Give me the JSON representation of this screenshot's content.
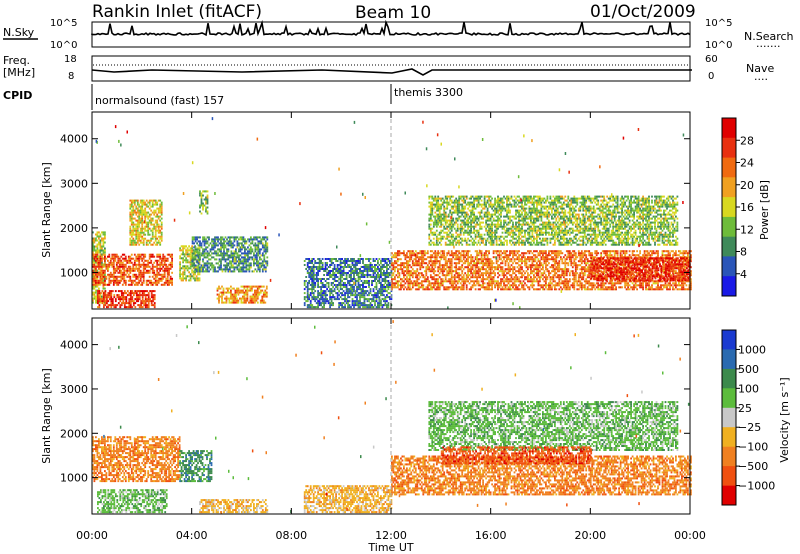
{
  "header": {
    "title": "Rankin Inlet (fitACF)",
    "beam": "Beam 10",
    "date": "01/Oct/2009"
  },
  "top_panel": {
    "left_label": "N.Sky",
    "left_ticks": [
      "10^5",
      "10^0"
    ],
    "right_ticks": [
      "10^5",
      "10^0"
    ],
    "right_label": "N.Search",
    "right_dots": "......."
  },
  "freq_panel": {
    "left_label_1": "Freq.",
    "left_label_2": "[MHz]",
    "left_ticks": [
      "18",
      "8"
    ],
    "right_ticks": [
      "60",
      "0"
    ],
    "right_label": "Nave",
    "right_dots": "...."
  },
  "cpid": {
    "label": "CPID",
    "mode_1": "normalsound (fast) 157",
    "mode_2": "themis 3300"
  },
  "x_axis": {
    "label": "Time UT",
    "ticks": [
      "00:00",
      "04:00",
      "08:00",
      "12:00",
      "16:00",
      "20:00",
      "00:00"
    ]
  },
  "power_panel": {
    "ylabel": "Slant Range [km]",
    "yticks": [
      "1000",
      "2000",
      "3000",
      "4000"
    ],
    "colorbar_label": "Power [dB]",
    "colorbar_ticks": [
      "4",
      "8",
      "12",
      "16",
      "20",
      "24",
      "28"
    ],
    "colors": [
      "#1a1ae6",
      "#2a55b8",
      "#3f8a5a",
      "#6ebc3a",
      "#d8d820",
      "#f0a020",
      "#f06a10",
      "#e83010",
      "#e00000"
    ]
  },
  "velocity_panel": {
    "ylabel": "Slant Range [km]",
    "yticks": [
      "1000",
      "2000",
      "3000",
      "4000"
    ],
    "colorbar_label": "Velocity [m s⁻¹]",
    "colorbar_ticks": [
      "1000",
      "500",
      "100",
      "25",
      "−25",
      "−100",
      "−500",
      "−1000"
    ],
    "colors": [
      "#1a3ad0",
      "#2a6ab0",
      "#3c8a4c",
      "#5cbc3c",
      "#c8c8c8",
      "#f0b020",
      "#f08020",
      "#f05010",
      "#e00000"
    ]
  },
  "chart_data": [
    {
      "type": "heatmap",
      "title": "Power [dB]",
      "xlabel": "Time UT",
      "ylabel": "Slant Range [km]",
      "xlim": [
        0,
        24
      ],
      "ylim": [
        180,
        4600
      ],
      "clim": [
        0,
        30
      ],
      "regions": [
        {
          "t0": 0.0,
          "t1": 0.5,
          "r0": 300,
          "r1": 1900,
          "v": 14
        },
        {
          "t0": 0.0,
          "t1": 3.2,
          "r0": 700,
          "r1": 1400,
          "v": 24
        },
        {
          "t0": 0.2,
          "t1": 2.5,
          "r0": 200,
          "r1": 600,
          "v": 26
        },
        {
          "t0": 1.5,
          "t1": 2.8,
          "r0": 1600,
          "r1": 2600,
          "v": 16
        },
        {
          "t0": 3.5,
          "t1": 4.3,
          "r0": 800,
          "r1": 1600,
          "v": 14
        },
        {
          "t0": 4.3,
          "t1": 4.6,
          "r0": 2300,
          "r1": 2800,
          "v": 12
        },
        {
          "t0": 4.0,
          "t1": 7.0,
          "r0": 1000,
          "r1": 1800,
          "v": 8
        },
        {
          "t0": 5.0,
          "t1": 7.0,
          "r0": 300,
          "r1": 700,
          "v": 20
        },
        {
          "t0": 8.5,
          "t1": 12.0,
          "r0": 200,
          "r1": 1300,
          "v": 6
        },
        {
          "t0": 12.0,
          "t1": 24.0,
          "r0": 600,
          "r1": 1500,
          "v": 22
        },
        {
          "t0": 13.5,
          "t1": 23.5,
          "r0": 1600,
          "r1": 2700,
          "v": 12
        },
        {
          "t0": 20.0,
          "t1": 24.0,
          "r0": 800,
          "r1": 1300,
          "v": 28
        }
      ]
    },
    {
      "type": "heatmap",
      "title": "Velocity [m s⁻¹]",
      "xlabel": "Time UT",
      "ylabel": "Slant Range [km]",
      "xlim": [
        0,
        24
      ],
      "ylim": [
        180,
        4600
      ],
      "regions": [
        {
          "t0": 0.0,
          "t1": 3.5,
          "r0": 900,
          "r1": 1900,
          "v": -500
        },
        {
          "t0": 0.2,
          "t1": 3.0,
          "r0": 200,
          "r1": 700,
          "v": 25
        },
        {
          "t0": 3.5,
          "t1": 4.8,
          "r0": 900,
          "r1": 1600,
          "v": 100
        },
        {
          "t0": 4.3,
          "t1": 7.0,
          "r0": 200,
          "r1": 500,
          "v": -100
        },
        {
          "t0": 8.5,
          "t1": 12.0,
          "r0": 200,
          "r1": 800,
          "v": -100
        },
        {
          "t0": 12.0,
          "t1": 24.0,
          "r0": 600,
          "r1": 1500,
          "v": -500
        },
        {
          "t0": 13.5,
          "t1": 23.5,
          "r0": 1600,
          "r1": 2700,
          "v": 25
        },
        {
          "t0": 14.0,
          "t1": 20.0,
          "r0": 1300,
          "r1": 1700,
          "v": -1000
        }
      ]
    }
  ]
}
